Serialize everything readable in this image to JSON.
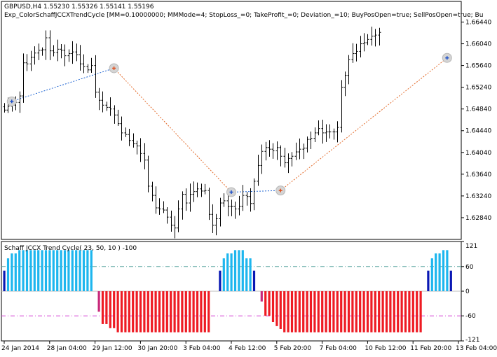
{
  "chart_data": [
    {
      "type": "candlestick",
      "symbol_line": "GBPUSD,H4  1.55230 1.55326 1.55141 1.55196",
      "expert_line": "Exp_ColorSchaffJCCXTrendCycle [MM=0.10000000; MMMode=4; StopLoss_=0; TakeProfit_=0; Deviation_=10; BuyPosOpen=true; SellPosOpen=true; Bu",
      "ylim": [
        1.6244,
        1.6682
      ],
      "y_ticks": [
        "1.66440",
        "1.66040",
        "1.65640",
        "1.65240",
        "1.64840",
        "1.64440",
        "1.64040",
        "1.63640",
        "1.63240",
        "1.62840"
      ],
      "closes": [
        1.6482,
        1.6489,
        1.6491,
        1.6496,
        1.6508,
        1.6569,
        1.6567,
        1.6579,
        1.6587,
        1.6592,
        1.6593,
        1.6615,
        1.6591,
        1.6588,
        1.6594,
        1.6592,
        1.6582,
        1.6586,
        1.6589,
        1.6584,
        1.6567,
        1.6562,
        1.6556,
        1.6564,
        1.6515,
        1.65,
        1.6491,
        1.6487,
        1.6484,
        1.6473,
        1.6457,
        1.644,
        1.6437,
        1.6426,
        1.642,
        1.6416,
        1.6402,
        1.639,
        1.6342,
        1.6325,
        1.6302,
        1.63,
        1.6298,
        1.6285,
        1.627,
        1.6265,
        1.63,
        1.6327,
        1.6311,
        1.6327,
        1.6332,
        1.6337,
        1.6333,
        1.6334,
        1.629,
        1.627,
        1.6282,
        1.6311,
        1.6315,
        1.6305,
        1.6305,
        1.63,
        1.6305,
        1.6325,
        1.6323,
        1.631,
        1.6351,
        1.638,
        1.6406,
        1.6413,
        1.641,
        1.6407,
        1.6413,
        1.6397,
        1.6385,
        1.6393,
        1.6397,
        1.6405,
        1.641,
        1.6412,
        1.6428,
        1.643,
        1.644,
        1.6448,
        1.644,
        1.6442,
        1.6442,
        1.6442,
        1.645,
        1.6524,
        1.6546,
        1.6575,
        1.6586,
        1.659,
        1.6604,
        1.6606,
        1.6612,
        1.6618,
        1.662,
        1.6625
      ],
      "signals": [
        {
          "type": "buy",
          "bar": 2,
          "price": 1.6498
        },
        {
          "type": "sell",
          "bar": 29,
          "price": 1.6559
        },
        {
          "type": "buy",
          "bar": 60,
          "price": 1.6331
        },
        {
          "type": "sell",
          "bar": 73,
          "price": 1.6334
        },
        {
          "type": "buy",
          "bar": 117,
          "price": 1.6578
        }
      ],
      "x_labels": [
        "24 Jan 2014",
        "28 Jan 04:00",
        "29 Jan 12:00",
        "30 Jan 20:00",
        "3 Feb 04:00",
        "4 Feb 12:00",
        "5 Feb 20:00",
        "7 Feb 04:00",
        "10 Feb 12:00",
        "11 Feb 20:00",
        "13 Feb 04:00"
      ],
      "x_label_bars": [
        0,
        12,
        24,
        36,
        48,
        60,
        72,
        84,
        96,
        108,
        120
      ]
    },
    {
      "type": "bar",
      "title": "Schaff JCCX Trend Cycle( 23, 50, 10 ) -100",
      "ylim": [
        -121,
        121
      ],
      "y_ticks": [
        "121",
        "60",
        "0",
        "-60",
        "-121"
      ],
      "levels": [
        60,
        0,
        -60
      ],
      "values": [
        {
          "from": 0,
          "to": 0,
          "v": 50
        },
        {
          "from": 1,
          "to": 1,
          "v": 80
        },
        {
          "from": 2,
          "to": 3,
          "v": 92
        },
        {
          "from": 4,
          "to": 23,
          "v": 100
        },
        {
          "from": 25,
          "to": 25,
          "v": -50
        },
        {
          "from": 26,
          "to": 27,
          "v": -80
        },
        {
          "from": 28,
          "to": 29,
          "v": -90
        },
        {
          "from": 30,
          "to": 54,
          "v": -100
        },
        {
          "from": 57,
          "to": 57,
          "v": 50
        },
        {
          "from": 58,
          "to": 58,
          "v": 80
        },
        {
          "from": 59,
          "to": 60,
          "v": 92
        },
        {
          "from": 61,
          "to": 63,
          "v": 100
        },
        {
          "from": 64,
          "to": 65,
          "v": 80
        },
        {
          "from": 66,
          "to": 66,
          "v": 50
        },
        {
          "from": 68,
          "to": 68,
          "v": -25
        },
        {
          "from": 69,
          "to": 70,
          "v": -60
        },
        {
          "from": 71,
          "to": 71,
          "v": -75
        },
        {
          "from": 72,
          "to": 72,
          "v": -85
        },
        {
          "from": 73,
          "to": 73,
          "v": -92
        },
        {
          "from": 74,
          "to": 110,
          "v": -100
        },
        {
          "from": 112,
          "to": 112,
          "v": 50
        },
        {
          "from": 113,
          "to": 113,
          "v": 80
        },
        {
          "from": 114,
          "to": 115,
          "v": 92
        },
        {
          "from": 116,
          "to": 117,
          "v": 100
        },
        {
          "from": 118,
          "to": 118,
          "v": 50
        }
      ],
      "colors": {
        "bull": "#1DB6EE",
        "bull_start": "#0A18B4",
        "bear": "#EE1B23",
        "bear_start": "#C8287A",
        "level_upper": "#5AA6A0",
        "level_lower": "#D23CD2",
        "zero": "#BEBEBE"
      }
    }
  ],
  "colors": {
    "buy_link": "#1E64D2",
    "sell_link": "#E36B2B"
  }
}
